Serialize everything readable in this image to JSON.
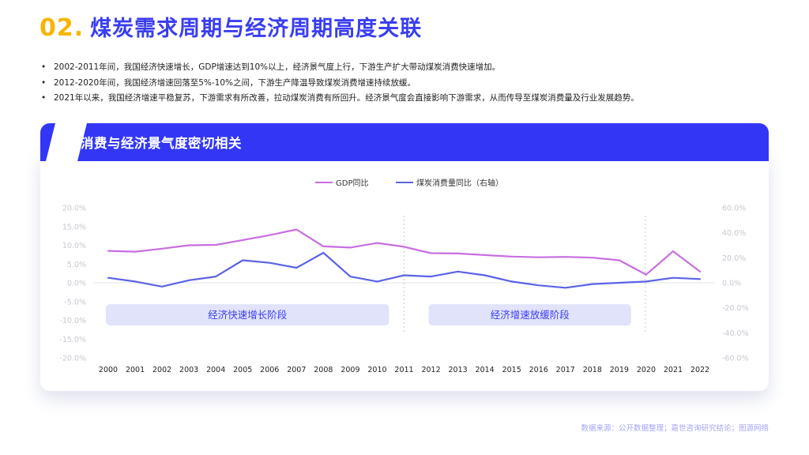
{
  "title": {
    "number": "02.",
    "text": "煤炭需求周期与经济周期高度关联"
  },
  "bullets": [
    "2002-2011年间，我国经济快速增长，GDP增速达到10%以上，经济景气度上行，下游生产扩大带动煤炭消费快速增加。",
    "2012-2020年间，我国经济增速回落至5%-10%之间，下游生产降温导致煤炭消费增速持续放缓。",
    "2021年以来，我国经济增速平稳复苏，下游需求有所改善，拉动煤炭消费有所回升。经济景气度会直接影响下游需求，从而传导至煤炭消费量及行业发展趋势。"
  ],
  "card": {
    "header": "煤炭消费与经济景气度密切相关"
  },
  "source": "数据来源：公开数据整理；嘉世咨询研究结论；图源网络",
  "colors": {
    "accent": "#3337f5",
    "title_number": "#f7b500",
    "gdp": "#c86ee0",
    "coal": "#5b63e6",
    "phase_box": "#e1e3fb"
  },
  "chart_data": {
    "type": "line",
    "x": [
      "2000",
      "2001",
      "2002",
      "2003",
      "2004",
      "2005",
      "2006",
      "2007",
      "2008",
      "2009",
      "2010",
      "2011",
      "2012",
      "2013",
      "2014",
      "2015",
      "2016",
      "2017",
      "2018",
      "2019",
      "2020",
      "2021",
      "2022"
    ],
    "series": [
      {
        "name": "GDP同比",
        "axis": "left",
        "values": [
          8.5,
          8.3,
          9.1,
          10.0,
          10.1,
          11.4,
          12.7,
          14.2,
          9.7,
          9.4,
          10.6,
          9.6,
          7.9,
          7.8,
          7.4,
          7.0,
          6.8,
          6.9,
          6.7,
          6.0,
          2.2,
          8.4,
          3.0
        ]
      },
      {
        "name": "煤炭消费量同比（右轴）",
        "axis": "right",
        "values": [
          4,
          1,
          -3,
          2,
          5,
          18,
          16,
          12,
          24,
          5,
          1,
          6,
          5,
          9,
          6,
          1,
          -2,
          -4,
          -1,
          0,
          1,
          4,
          3
        ]
      }
    ],
    "y_left": {
      "ticks": [
        "20.0%",
        "15.0%",
        "10.0%",
        "5.0%",
        "0.0%",
        "-5.0%",
        "-10.0%",
        "-15.0%",
        "-20.0%"
      ],
      "range": [
        -20,
        20
      ]
    },
    "y_right": {
      "ticks": [
        "60.0%",
        "40.0%",
        "20.0%",
        "0.0%",
        "-20.0%",
        "-40.0%",
        "-60.0%"
      ],
      "range": [
        -60,
        60
      ]
    },
    "phases": [
      {
        "label": "经济快速增长阶段",
        "from": "2000",
        "to": "2010"
      },
      {
        "label": "经济增速放缓阶段",
        "from": "2012",
        "to": "2019"
      }
    ],
    "dividers": [
      "2011",
      "2020"
    ],
    "legend_position": "top-center",
    "grid": false
  }
}
